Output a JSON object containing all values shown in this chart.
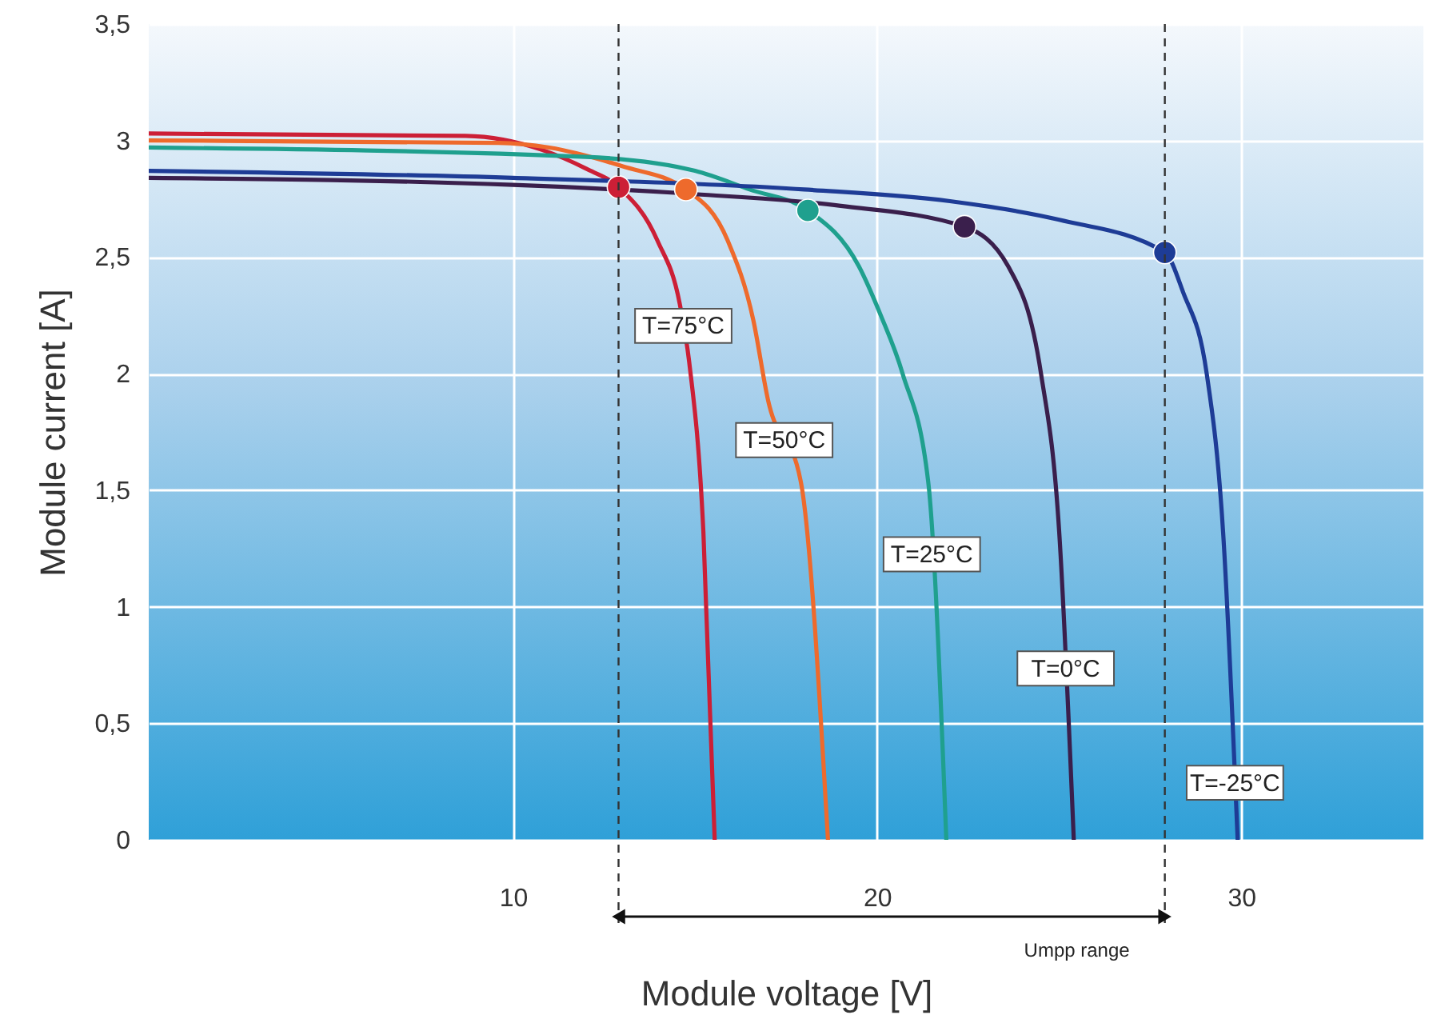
{
  "chart_data": {
    "type": "line",
    "xlabel": "Module voltage [V]",
    "ylabel": "Module current [A]",
    "xlim": [
      0,
      35
    ],
    "xticks": [
      10,
      20,
      30
    ],
    "ylim": [
      0,
      3.5
    ],
    "yticks": [
      0,
      {
        "value": 0.5,
        "label": "0,5"
      },
      1,
      {
        "value": 1.5,
        "label": "1,5"
      },
      2,
      {
        "value": 2.5,
        "label": "2,5"
      },
      3,
      {
        "value": 3.5,
        "label": "3,5"
      }
    ],
    "grid": true,
    "marker": "none",
    "line_style": "solid",
    "series": [
      {
        "name": "T=75°C",
        "color": "#cc1f36",
        "x": [
          0,
          8.7,
          10.8,
          12,
          12.9,
          13.97,
          14.58,
          14.84,
          15.23,
          15.54
        ],
        "values": [
          3.03,
          3.02,
          2.96,
          2.88,
          2.8,
          2.57,
          2.3,
          2.05,
          1.32,
          0
        ]
      },
      {
        "name": "T=50°C",
        "color": "#ee6a2c",
        "x": [
          0,
          9.6,
          11,
          13,
          14.75,
          15.9,
          16.6,
          17,
          17.9,
          18.65
        ],
        "values": [
          3.0,
          2.99,
          2.97,
          2.89,
          2.79,
          2.57,
          2.23,
          1.89,
          1.54,
          0
        ]
      },
      {
        "name": "T=25°C",
        "color": "#1fa08e",
        "x": [
          0,
          12,
          15,
          16.5,
          18.1,
          19.5,
          20.1,
          20.7,
          21.4,
          21.9
        ],
        "values": [
          2.97,
          2.93,
          2.87,
          2.79,
          2.7,
          2.46,
          2.25,
          2.0,
          1.54,
          0
        ]
      },
      {
        "name": "T=0°C",
        "color": "#3a1f4c",
        "x": [
          0,
          10,
          15,
          19,
          22.4,
          23.6,
          24.5,
          25,
          25.4
        ],
        "values": [
          2.84,
          2.81,
          2.77,
          2.72,
          2.63,
          2.46,
          2.0,
          1.32,
          0
        ]
      },
      {
        "name": "T=-25°C",
        "color": "#1e3c96",
        "x": [
          0,
          10,
          18,
          22,
          25,
          27.9,
          28.4,
          29.05,
          29.5,
          29.9
        ],
        "values": [
          2.87,
          2.84,
          2.79,
          2.74,
          2.66,
          2.52,
          2.35,
          2.0,
          1.32,
          0
        ]
      },
      {
        "type": "scatter",
        "marker": "circle",
        "color": "#cc1f36",
        "x": [
          12.9
        ],
        "values": [
          2.8
        ]
      },
      {
        "type": "scatter",
        "marker": "circle",
        "color": "#ee6a2c",
        "x": [
          14.75
        ],
        "values": [
          2.79
        ]
      },
      {
        "type": "scatter",
        "marker": "circle",
        "color": "#1fa08e",
        "x": [
          18.1
        ],
        "values": [
          2.7
        ]
      },
      {
        "type": "scatter",
        "marker": "circle",
        "color": "#3a1f4c",
        "x": [
          22.4
        ],
        "values": [
          2.63
        ]
      },
      {
        "type": "scatter",
        "marker": "circle",
        "color": "#1e3c96",
        "x": [
          27.9
        ],
        "values": [
          2.52
        ]
      }
    ],
    "ref_lines": [
      {
        "axis": "x",
        "value": 12.9,
        "line_style": "dashed",
        "color": "#333333"
      },
      {
        "axis": "x",
        "value": 27.9,
        "line_style": "dashed",
        "color": "#333333"
      }
    ],
    "annotations": [
      "Umpp range"
    ]
  }
}
